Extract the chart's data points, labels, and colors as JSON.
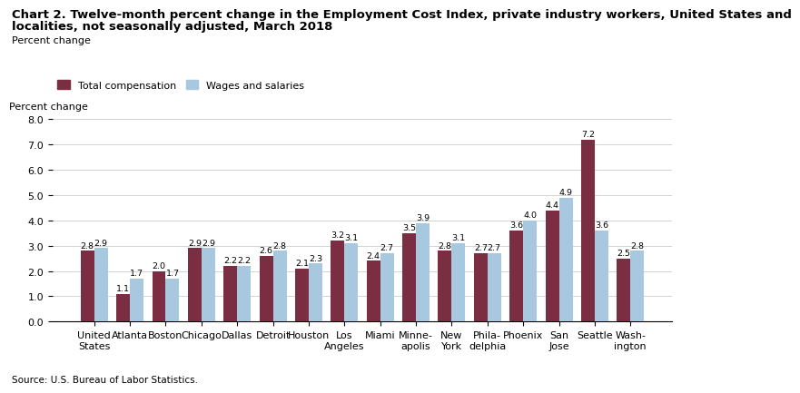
{
  "title_line1": "Chart 2. Twelve-month percent change in the Employment Cost Index, private industry workers, United States and",
  "title_line2": "localities, not seasonally adjusted, March 2018",
  "ylabel": "Percent change",
  "source": "Source: U.S. Bureau of Labor Statistics.",
  "categories": [
    "United\nStates",
    "Atlanta",
    "Boston",
    "Chicago",
    "Dallas",
    "Detroit",
    "Houston",
    "Los\nAngeles",
    "Miami",
    "Minne-\napolis",
    "New\nYork",
    "Phila-\ndelphia",
    "Phoenix",
    "San\nJose",
    "Seattle",
    "Wash-\nington"
  ],
  "total_compensation": [
    2.8,
    1.1,
    2.0,
    2.9,
    2.2,
    2.6,
    2.1,
    3.2,
    2.4,
    3.5,
    2.8,
    2.7,
    3.6,
    4.4,
    7.2,
    2.5
  ],
  "wages_salaries": [
    2.9,
    1.7,
    1.7,
    2.9,
    2.2,
    2.8,
    2.3,
    3.1,
    2.7,
    3.9,
    3.1,
    2.7,
    4.0,
    4.9,
    3.6,
    2.8
  ],
  "color_total": "#7B2D42",
  "color_wages": "#A8C8E0",
  "ylim": [
    0,
    8.0
  ],
  "yticks": [
    0.0,
    1.0,
    2.0,
    3.0,
    4.0,
    5.0,
    6.0,
    7.0,
    8.0
  ],
  "bar_width": 0.38,
  "legend_labels": [
    "Total compensation",
    "Wages and salaries"
  ],
  "title_fontsize": 9.5,
  "label_fontsize": 8,
  "tick_fontsize": 8,
  "value_fontsize": 6.8
}
